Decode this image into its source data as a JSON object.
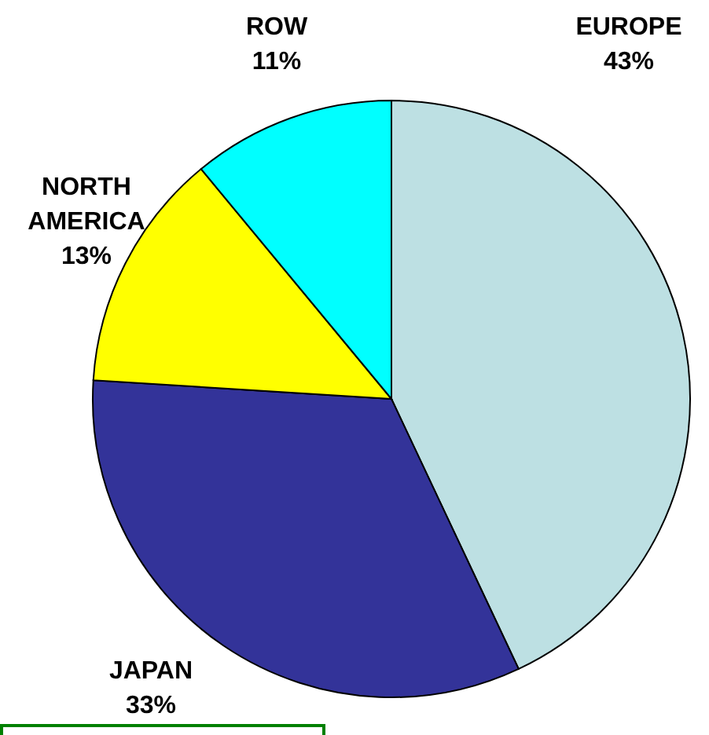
{
  "chart_data": {
    "type": "pie",
    "categories": [
      "EUROPE",
      "JAPAN",
      "NORTH AMERICA",
      "ROW"
    ],
    "values": [
      43,
      33,
      13,
      11
    ],
    "colors": [
      "#bde0e3",
      "#333399",
      "#ffff00",
      "#00ffff"
    ],
    "value_labels": [
      "43%",
      "33%",
      "13%",
      "11%"
    ]
  }
}
